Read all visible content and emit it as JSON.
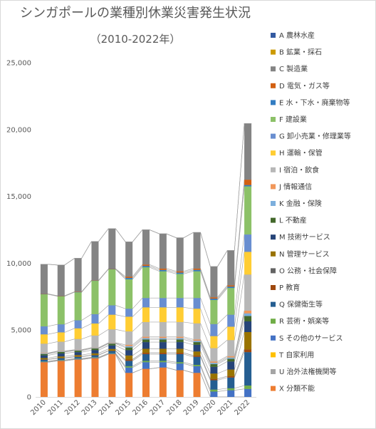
{
  "chart_data": {
    "type": "bar",
    "stacked": true,
    "title": "シンガポールの業種別休業災害発生状況",
    "subtitle": "（2010-2022年）",
    "categories": [
      "2010",
      "2011",
      "2012",
      "2013",
      "2014",
      "2015",
      "2016",
      "2017",
      "2018",
      "2019",
      "2020",
      "2021",
      "2022"
    ],
    "ylim": [
      0,
      25000
    ],
    "yticks": [
      "0",
      "5,000",
      "10,000",
      "15,000",
      "20,000",
      "25,000"
    ],
    "ytick_values": [
      0,
      5000,
      10000,
      15000,
      20000,
      25000
    ],
    "grid": false,
    "legend_position": "right",
    "series_lines": true,
    "series": [
      {
        "name": "X 分類不能",
        "color": "#ED7D31",
        "values": [
          2600,
          2700,
          2800,
          2900,
          3200,
          1800,
          2100,
          2200,
          2000,
          1800,
          0,
          0,
          0
        ]
      },
      {
        "name": "U 治外法権機関等",
        "color": "#A5A5A5",
        "values": [
          0,
          0,
          0,
          0,
          0,
          0,
          0,
          0,
          0,
          0,
          0,
          0,
          0
        ]
      },
      {
        "name": "T 自家利用",
        "color": "#FFC000",
        "values": [
          0,
          0,
          0,
          0,
          0,
          0,
          0,
          0,
          0,
          0,
          0,
          0,
          0
        ]
      },
      {
        "name": "S その他のサービス",
        "color": "#4472C4",
        "values": [
          40,
          40,
          40,
          40,
          40,
          400,
          500,
          400,
          500,
          500,
          400,
          500,
          600
        ]
      },
      {
        "name": "R 芸術・娯楽等",
        "color": "#70AD47",
        "values": [
          30,
          30,
          30,
          30,
          30,
          100,
          100,
          100,
          100,
          100,
          150,
          150,
          250
        ]
      },
      {
        "name": "Q 保健衛生等",
        "color": "#255E91",
        "values": [
          120,
          130,
          130,
          150,
          170,
          400,
          500,
          500,
          600,
          600,
          700,
          800,
          2500
        ]
      },
      {
        "name": "P 教育",
        "color": "#9E480E",
        "values": [
          20,
          20,
          20,
          20,
          20,
          100,
          100,
          100,
          100,
          100,
          100,
          100,
          200
        ]
      },
      {
        "name": "O 公務・社会保障",
        "color": "#636363",
        "values": [
          0,
          0,
          0,
          0,
          0,
          0,
          0,
          0,
          0,
          0,
          0,
          0,
          0
        ]
      },
      {
        "name": "N 管理サービス",
        "color": "#997300",
        "values": [
          100,
          110,
          110,
          120,
          130,
          300,
          300,
          300,
          300,
          300,
          400,
          500,
          1300
        ]
      },
      {
        "name": "M 技術サービス",
        "color": "#264478",
        "values": [
          200,
          220,
          220,
          240,
          260,
          400,
          500,
          500,
          500,
          500,
          500,
          600,
          800
        ]
      },
      {
        "name": "L 不動産",
        "color": "#43682B",
        "values": [
          100,
          110,
          110,
          120,
          130,
          200,
          200,
          200,
          200,
          200,
          200,
          200,
          400
        ]
      },
      {
        "name": "K 金融・保険",
        "color": "#7CAFDD",
        "values": [
          40,
          40,
          40,
          40,
          40,
          100,
          100,
          100,
          100,
          100,
          100,
          100,
          200
        ]
      },
      {
        "name": "J 情報通信",
        "color": "#F1975A",
        "values": [
          30,
          30,
          30,
          30,
          30,
          100,
          100,
          100,
          100,
          100,
          100,
          100,
          200
        ]
      },
      {
        "name": "I 宿泊・飲食",
        "color": "#B7B7B7",
        "values": [
          700,
          700,
          800,
          900,
          1000,
          1000,
          1100,
          1100,
          1100,
          1200,
          1000,
          1200,
          2700
        ]
      },
      {
        "name": "H 運輸・保管",
        "color": "#FFCD33",
        "values": [
          700,
          700,
          800,
          900,
          1100,
          1100,
          1100,
          1100,
          1100,
          1100,
          900,
          1000,
          1700
        ]
      },
      {
        "name": "G 卸小売業・修理業等",
        "color": "#698ED0",
        "values": [
          600,
          600,
          600,
          700,
          700,
          600,
          700,
          700,
          700,
          800,
          900,
          900,
          1300
        ]
      },
      {
        "name": "F 建設業",
        "color": "#8CC168",
        "values": [
          2400,
          2100,
          2100,
          2500,
          2700,
          2200,
          2300,
          2000,
          1800,
          2000,
          1800,
          2000,
          3600
        ]
      },
      {
        "name": "E 水・下水・廃棄物等",
        "color": "#327DC2",
        "values": [
          20,
          20,
          20,
          20,
          20,
          100,
          100,
          100,
          100,
          100,
          100,
          100,
          100
        ]
      },
      {
        "name": "D 電気・ガス等",
        "color": "#D26012",
        "values": [
          20,
          20,
          20,
          20,
          20,
          100,
          100,
          100,
          100,
          100,
          100,
          100,
          400
        ]
      },
      {
        "name": "C 製造業",
        "color": "#848484",
        "values": [
          2200,
          2300,
          2500,
          2900,
          3000,
          2600,
          2600,
          2600,
          2500,
          2700,
          2300,
          2600,
          4200
        ]
      },
      {
        "name": "B 鉱業・採石",
        "color": "#CC9A00",
        "values": [
          0,
          0,
          0,
          0,
          0,
          0,
          0,
          0,
          0,
          0,
          0,
          0,
          0
        ]
      },
      {
        "name": "A 農林水産",
        "color": "#335AA1",
        "values": [
          0,
          0,
          0,
          0,
          0,
          0,
          0,
          0,
          0,
          0,
          0,
          0,
          0
        ]
      }
    ]
  }
}
